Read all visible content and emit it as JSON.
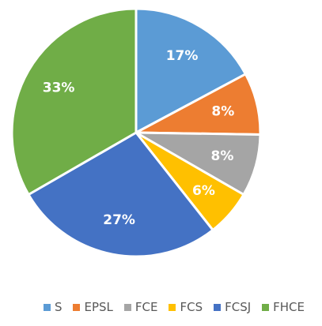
{
  "chart_data": {
    "type": "pie",
    "categories": [
      "S",
      "EPSL",
      "FCE",
      "FCS",
      "FCSJ",
      "FHCE"
    ],
    "values": [
      17,
      8,
      8,
      6,
      27,
      33
    ],
    "value_labels": [
      "17%",
      "8%",
      "8%",
      "6%",
      "27%",
      "33%"
    ],
    "colors": [
      "#5b9bd5",
      "#ed7d31",
      "#a5a5a5",
      "#ffc000",
      "#4472c4",
      "#70ad47"
    ],
    "legend": "bottom"
  }
}
